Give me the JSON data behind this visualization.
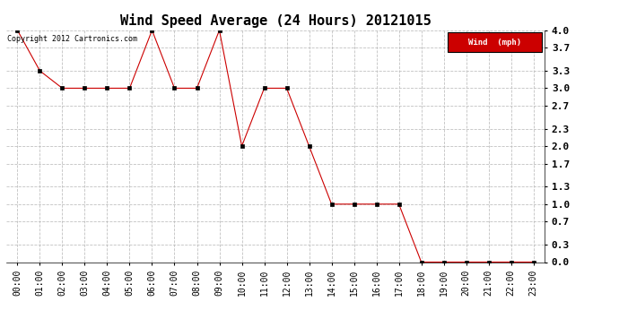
{
  "title": "Wind Speed Average (24 Hours) 20121015",
  "hours": [
    "00:00",
    "01:00",
    "02:00",
    "03:00",
    "04:00",
    "05:00",
    "06:00",
    "07:00",
    "08:00",
    "09:00",
    "10:00",
    "11:00",
    "12:00",
    "13:00",
    "14:00",
    "15:00",
    "16:00",
    "17:00",
    "18:00",
    "19:00",
    "20:00",
    "21:00",
    "22:00",
    "23:00"
  ],
  "values": [
    4.0,
    3.3,
    3.0,
    3.0,
    3.0,
    3.0,
    4.0,
    3.0,
    3.0,
    4.0,
    2.0,
    3.0,
    3.0,
    2.0,
    1.0,
    1.0,
    1.0,
    1.0,
    0.0,
    0.0,
    0.0,
    0.0,
    0.0,
    0.0
  ],
  "line_color": "#cc0000",
  "marker": "s",
  "marker_size": 2.5,
  "ylim": [
    0.0,
    4.0
  ],
  "yticks": [
    0.0,
    0.3,
    0.7,
    1.0,
    1.3,
    1.7,
    2.0,
    2.3,
    2.7,
    3.0,
    3.3,
    3.7,
    4.0
  ],
  "background_color": "#ffffff",
  "grid_color": "#bbbbbb",
  "copyright_text": "Copyright 2012 Cartronics.com",
  "legend_label": "Wind  (mph)",
  "legend_bg": "#cc0000",
  "legend_text_color": "#ffffff",
  "title_fontsize": 11,
  "tick_fontsize": 7,
  "copyright_fontsize": 6
}
